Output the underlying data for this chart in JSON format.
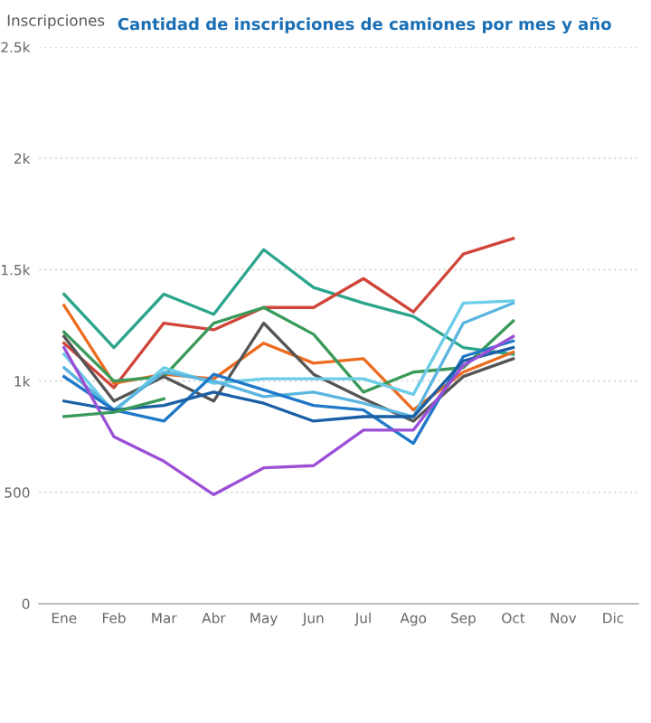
{
  "chart_data": {
    "type": "line",
    "title": "Cantidad de inscripciones de camiones por mes y año",
    "ylabel": "Inscripciones",
    "categories": [
      "Ene",
      "Feb",
      "Mar",
      "Abr",
      "May",
      "Jun",
      "Jul",
      "Ago",
      "Sep",
      "Oct",
      "Nov",
      "Dic"
    ],
    "ylim": [
      0,
      2500
    ],
    "yticks": [
      0,
      500,
      {
        "value": 1000,
        "label": "1k"
      },
      {
        "value": 1500,
        "label": "1.5k"
      },
      {
        "value": 2000,
        "label": "2k"
      },
      {
        "value": 2500,
        "label": "2.5k"
      }
    ],
    "grid": "y",
    "marker": "none",
    "line_style": "solid",
    "series": [
      {
        "color": "#2ca58d",
        "values": [
          1390,
          1150,
          1390,
          1300,
          1590,
          1420,
          1350,
          1290,
          1150,
          1120,
          null,
          null
        ]
      },
      {
        "color": "#d0453a",
        "values": [
          1170,
          970,
          1260,
          1230,
          1330,
          1330,
          1460,
          1310,
          1570,
          1640,
          null,
          null
        ]
      },
      {
        "color": "#ec6b1e",
        "values": [
          1340,
          990,
          1030,
          1010,
          1170,
          1080,
          1100,
          870,
          1040,
          1130,
          null,
          null
        ]
      },
      {
        "color": "#3a9a5a",
        "values": [
          1220,
          1000,
          1020,
          1260,
          1330,
          1210,
          950,
          1040,
          1060,
          1270,
          null,
          null
        ]
      },
      {
        "color": "#555555",
        "values": [
          1200,
          910,
          1020,
          910,
          1260,
          1030,
          920,
          820,
          1020,
          1100,
          null,
          null
        ]
      },
      {
        "color": "#6ccde8",
        "values": [
          1120,
          860,
          1060,
          990,
          1010,
          1010,
          1010,
          940,
          1350,
          1360,
          null,
          null
        ]
      },
      {
        "color": "#5bb5e0",
        "values": [
          1060,
          870,
          1040,
          1000,
          930,
          950,
          900,
          840,
          1260,
          1350,
          null,
          null
        ]
      },
      {
        "color": "#1f78c8",
        "values": [
          1020,
          870,
          820,
          1030,
          960,
          890,
          870,
          720,
          1110,
          1180,
          null,
          null
        ]
      },
      {
        "color": "#1a5fa5",
        "values": [
          910,
          870,
          890,
          950,
          900,
          820,
          840,
          840,
          1090,
          1150,
          null,
          null
        ]
      },
      {
        "color": "#9b4fd6",
        "values": [
          1150,
          750,
          640,
          490,
          610,
          620,
          780,
          780,
          1070,
          1200,
          null,
          null
        ]
      },
      {
        "color": "#3a9a5a",
        "values": [
          840,
          860,
          920,
          null,
          null,
          null,
          null,
          null,
          null,
          null,
          null,
          null
        ]
      }
    ]
  }
}
